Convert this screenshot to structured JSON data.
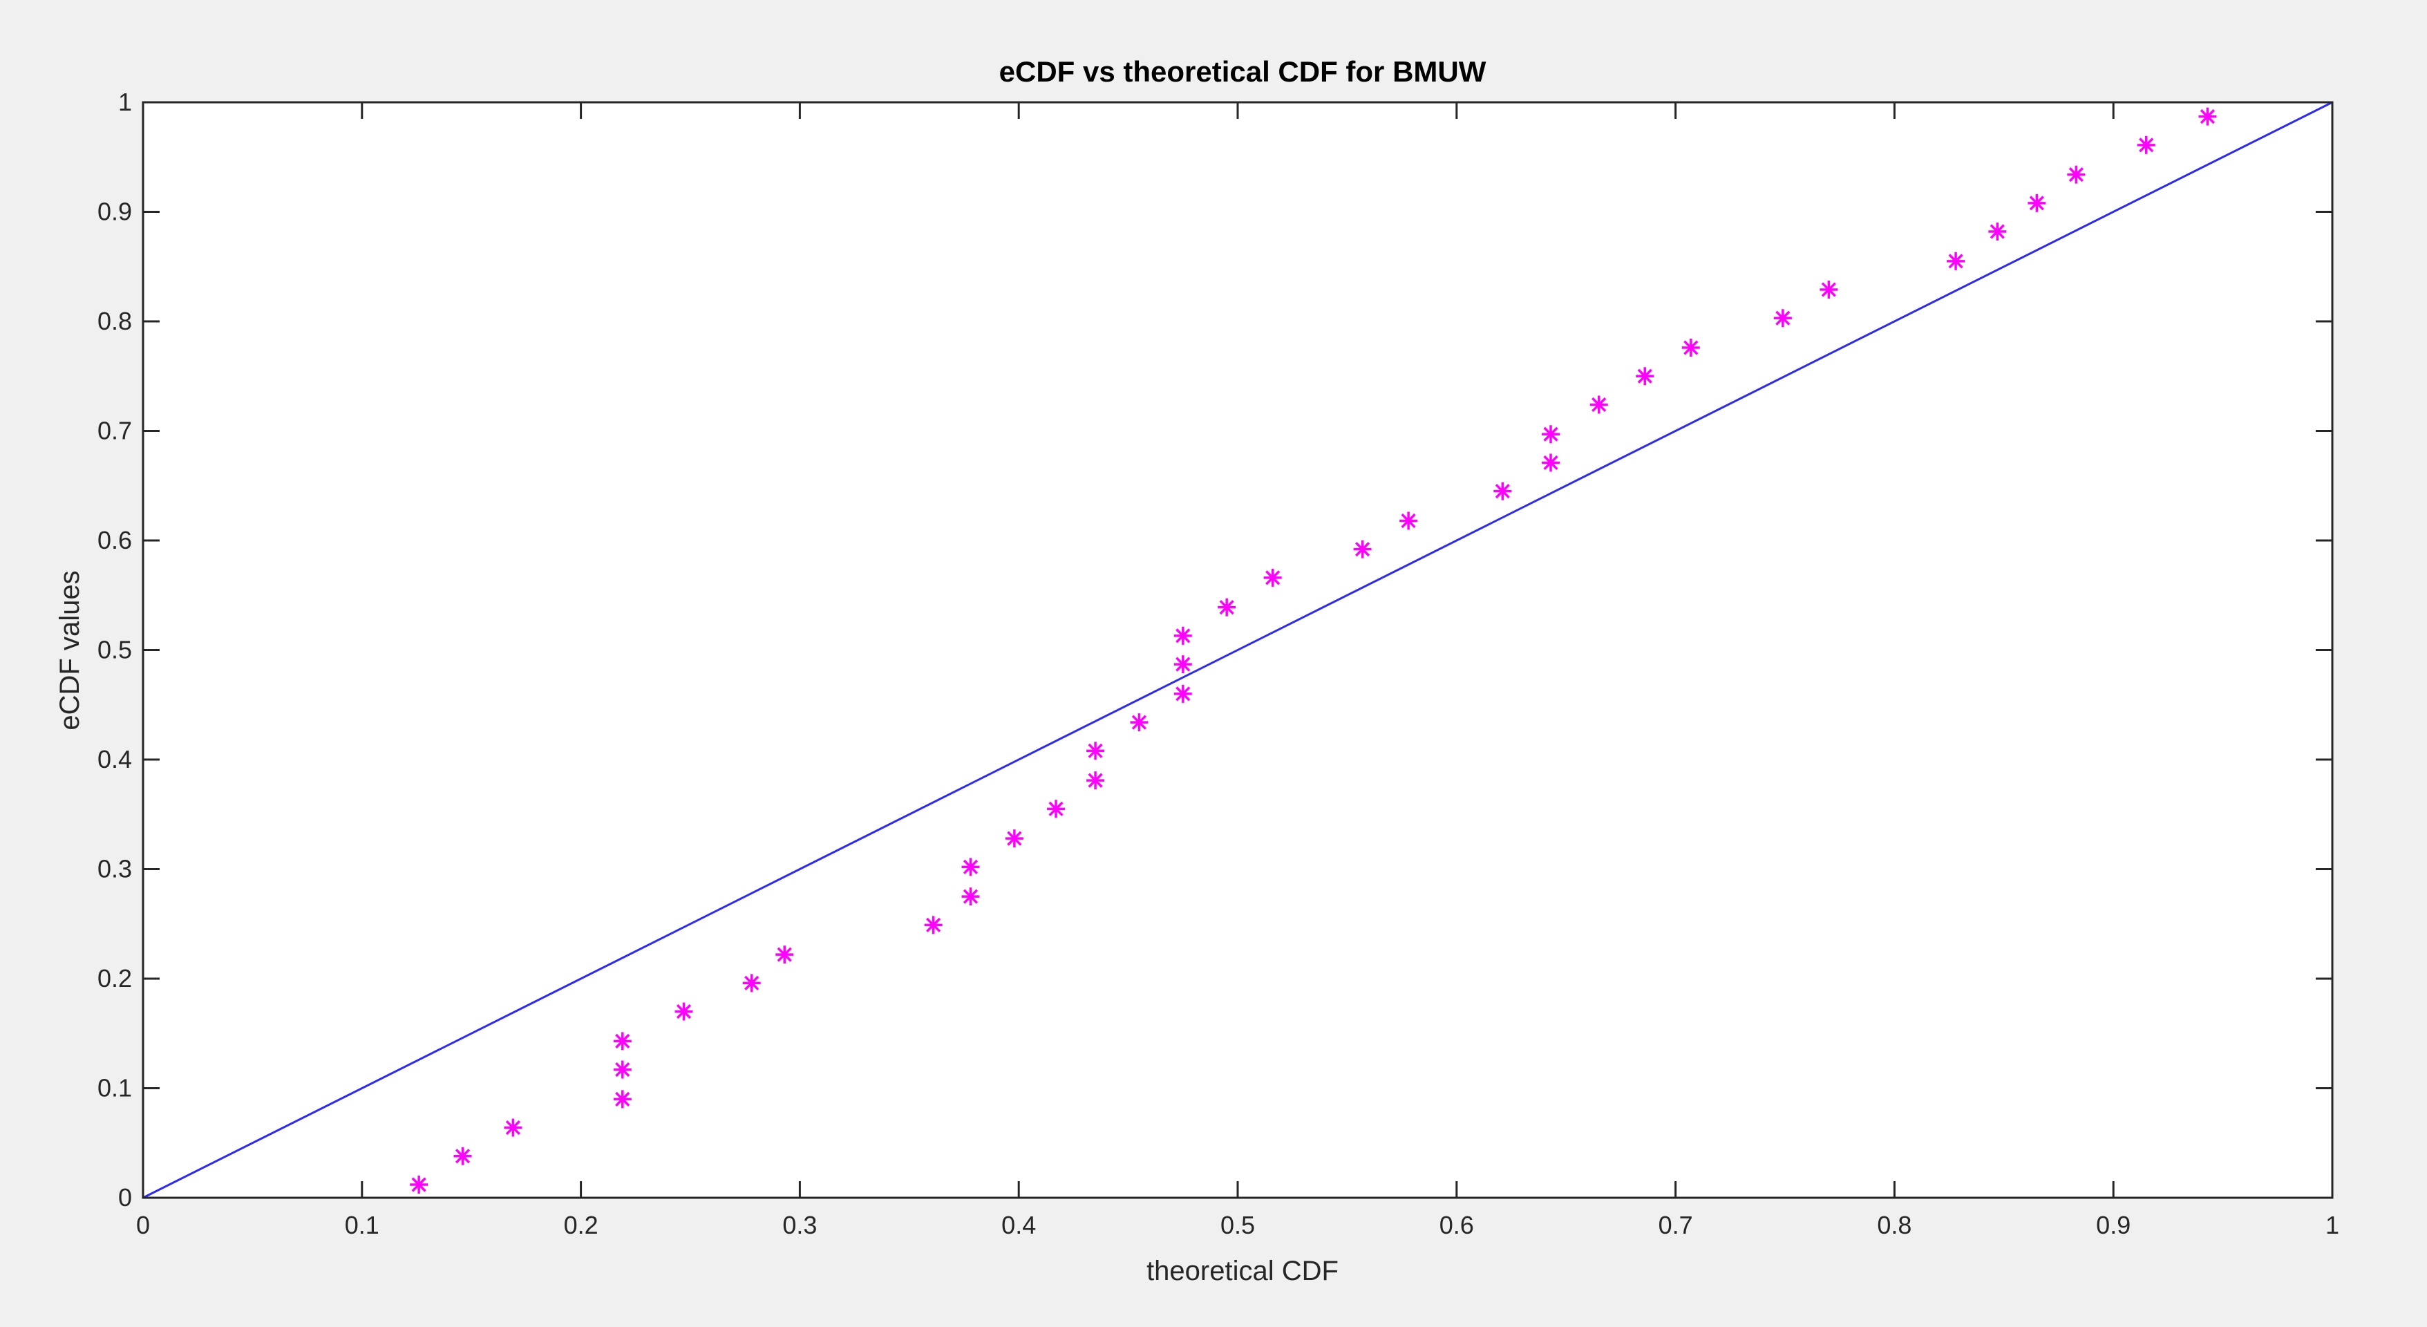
{
  "figure": {
    "title": "eCDF vs theoretical CDF for BMUW",
    "background_color": "#f0f0f0"
  },
  "chart_data": {
    "type": "scatter",
    "title": "eCDF vs theoretical CDF for BMUW",
    "xlabel": "theoretical CDF",
    "ylabel": "eCDF values",
    "xlim": [
      0,
      1
    ],
    "ylim": [
      0,
      1
    ],
    "x_ticks": [
      0,
      0.1,
      0.2,
      0.3,
      0.4,
      0.5,
      0.6,
      0.7,
      0.8,
      0.9,
      1
    ],
    "y_ticks": [
      0,
      0.1,
      0.2,
      0.3,
      0.4,
      0.5,
      0.6,
      0.7,
      0.8,
      0.9,
      1
    ],
    "x_tick_labels": [
      "0",
      "0.1",
      "0.2",
      "0.3",
      "0.4",
      "0.5",
      "0.6",
      "0.7",
      "0.8",
      "0.9",
      "1"
    ],
    "y_tick_labels": [
      "0",
      "0.1",
      "0.2",
      "0.3",
      "0.4",
      "0.5",
      "0.6",
      "0.7",
      "0.8",
      "0.9",
      "1"
    ],
    "grid": false,
    "series": [
      {
        "type": "scatter",
        "marker": "asterisk",
        "color": "#ff00ff",
        "points": [
          {
            "x": 0.126,
            "y": 0.012
          },
          {
            "x": 0.146,
            "y": 0.038
          },
          {
            "x": 0.169,
            "y": 0.064
          },
          {
            "x": 0.219,
            "y": 0.09
          },
          {
            "x": 0.219,
            "y": 0.117
          },
          {
            "x": 0.219,
            "y": 0.143
          },
          {
            "x": 0.247,
            "y": 0.17
          },
          {
            "x": 0.278,
            "y": 0.196
          },
          {
            "x": 0.293,
            "y": 0.222
          },
          {
            "x": 0.361,
            "y": 0.249
          },
          {
            "x": 0.378,
            "y": 0.275
          },
          {
            "x": 0.378,
            "y": 0.302
          },
          {
            "x": 0.398,
            "y": 0.328
          },
          {
            "x": 0.417,
            "y": 0.355
          },
          {
            "x": 0.435,
            "y": 0.381
          },
          {
            "x": 0.435,
            "y": 0.408
          },
          {
            "x": 0.455,
            "y": 0.434
          },
          {
            "x": 0.475,
            "y": 0.46
          },
          {
            "x": 0.475,
            "y": 0.487
          },
          {
            "x": 0.475,
            "y": 0.513
          },
          {
            "x": 0.495,
            "y": 0.539
          },
          {
            "x": 0.516,
            "y": 0.566
          },
          {
            "x": 0.557,
            "y": 0.592
          },
          {
            "x": 0.578,
            "y": 0.618
          },
          {
            "x": 0.621,
            "y": 0.645
          },
          {
            "x": 0.643,
            "y": 0.671
          },
          {
            "x": 0.643,
            "y": 0.697
          },
          {
            "x": 0.665,
            "y": 0.724
          },
          {
            "x": 0.686,
            "y": 0.75
          },
          {
            "x": 0.707,
            "y": 0.776
          },
          {
            "x": 0.749,
            "y": 0.803
          },
          {
            "x": 0.77,
            "y": 0.829
          },
          {
            "x": 0.828,
            "y": 0.855
          },
          {
            "x": 0.847,
            "y": 0.882
          },
          {
            "x": 0.865,
            "y": 0.908
          },
          {
            "x": 0.883,
            "y": 0.934
          },
          {
            "x": 0.915,
            "y": 0.961
          },
          {
            "x": 0.943,
            "y": 0.987
          }
        ]
      },
      {
        "type": "line",
        "color": "#2b2bf5",
        "x": [
          0,
          1
        ],
        "y": [
          0,
          1
        ]
      }
    ]
  }
}
